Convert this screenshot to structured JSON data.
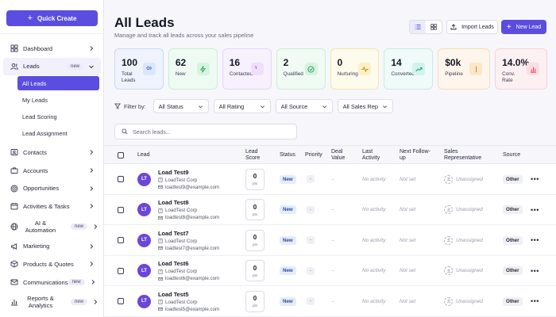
{
  "sidebar": {
    "quick_create": "Quick Create",
    "items": [
      {
        "id": "dashboard",
        "label": "Dashboard",
        "icon": "grid-icon",
        "chevron": true
      },
      {
        "id": "leads",
        "label": "Leads",
        "icon": "users-icon",
        "badge": "new",
        "expanded": true,
        "children": [
          {
            "label": "All Leads",
            "active": true
          },
          {
            "label": "My Leads"
          },
          {
            "label": "Lead Scoring"
          },
          {
            "label": "Lead Assignment"
          }
        ]
      },
      {
        "id": "contacts",
        "label": "Contacts",
        "icon": "contact-card-icon",
        "chevron": true
      },
      {
        "id": "accounts",
        "label": "Accounts",
        "icon": "briefcase-icon",
        "chevron": true
      },
      {
        "id": "opportunities",
        "label": "Opportunities",
        "icon": "target-icon",
        "chevron": true
      },
      {
        "id": "activities",
        "label": "Activities & Tasks",
        "icon": "calendar-icon",
        "chevron": true
      },
      {
        "id": "ai",
        "label": "AI & Automation",
        "icon": "globe-icon",
        "badge": "new",
        "chevron": true
      },
      {
        "id": "marketing",
        "label": "Marketing",
        "icon": "megaphone-icon",
        "chevron": true
      },
      {
        "id": "products",
        "label": "Products & Quotes",
        "icon": "box-icon",
        "chevron": true
      },
      {
        "id": "communications",
        "label": "Communications",
        "icon": "mail-icon",
        "badge": "new",
        "chevron": true
      },
      {
        "id": "reports",
        "label": "Reports & Analytics",
        "icon": "bar-chart-icon",
        "badge": "new",
        "chevron": true
      }
    ]
  },
  "header": {
    "title": "All Leads",
    "subtitle": "Manage and track all leads across your sales pipeline",
    "import_label": "Import Leads",
    "new_label": "New Lead"
  },
  "stats": [
    {
      "value": "100",
      "label": "Total Leads",
      "bg": "#eef3fe",
      "border": "#c9d8f8",
      "icon_bg": "#dbe6fc",
      "icon_color": "#3d5ed6",
      "icon": "users-icon"
    },
    {
      "value": "62",
      "label": "New",
      "bg": "#eefbf3",
      "border": "#c9eed7",
      "icon_bg": "#d4f4e0",
      "icon_color": "#1f9d55",
      "icon": "bolt-icon"
    },
    {
      "value": "16",
      "label": "Contacted",
      "bg": "#f7f0fd",
      "border": "#e6d5f7",
      "icon_bg": "#efdffb",
      "icon_color": "#8a3fd1",
      "icon": "phone-icon"
    },
    {
      "value": "2",
      "label": "Qualified",
      "bg": "#f0fbf3",
      "border": "#ccecd5",
      "icon_bg": "#d6f3df",
      "icon_color": "#1f9d55",
      "icon": "check-circle-icon"
    },
    {
      "value": "0",
      "label": "Nurturing",
      "bg": "#fdfbeb",
      "border": "#f1e6b3",
      "icon_bg": "#fbf1c5",
      "icon_color": "#b88a00",
      "icon": "pulse-icon"
    },
    {
      "value": "14",
      "label": "Converted",
      "bg": "#eefbf8",
      "border": "#c7ece2",
      "icon_bg": "#d2f3ea",
      "icon_color": "#15977a",
      "icon": "trend-up-icon"
    },
    {
      "value": "$0k",
      "label": "Pipeline",
      "bg": "#fef6ec",
      "border": "#f5dcbc",
      "icon_bg": "#fde6c8",
      "icon_color": "#d27a12",
      "icon": "dollar-icon"
    },
    {
      "value": "14.0%",
      "label": "Conv. Rate",
      "bg": "#fdf0f2",
      "border": "#f6d3da",
      "icon_bg": "#fbdde3",
      "icon_color": "#d63e5d",
      "icon": "bar-chart-icon"
    }
  ],
  "filters": {
    "label": "Filter by:",
    "selects": [
      "All Status",
      "All Rating",
      "All Source",
      "All Sales Rep"
    ]
  },
  "search": {
    "placeholder": "Search leads..."
  },
  "table": {
    "columns": [
      "Lead",
      "Lead Score",
      "Status",
      "Priority",
      "Deal Value",
      "Last Activity",
      "Next Follow-up",
      "Sales Representative",
      "Source"
    ],
    "rows": [
      {
        "initials": "LT",
        "name": "Load Test9",
        "company": "LoadTest Corp",
        "email": "loadtest9@example.com",
        "score": "0",
        "pts": "pts",
        "status": "New",
        "priority": "-",
        "deal": "-",
        "last_activity": "No activity",
        "follow_up": "Not set",
        "rep": "Unassigned",
        "source": "Other",
        "more": "•••"
      },
      {
        "initials": "LT",
        "name": "Load Test8",
        "company": "LoadTest Corp",
        "email": "loadtest8@example.com",
        "score": "0",
        "pts": "pts",
        "status": "New",
        "priority": "-",
        "deal": "-",
        "last_activity": "No activity",
        "follow_up": "Not set",
        "rep": "Unassigned",
        "source": "Other",
        "more": "•••"
      },
      {
        "initials": "LT",
        "name": "Load Test7",
        "company": "LoadTest Corp",
        "email": "loadtest7@example.com",
        "score": "0",
        "pts": "pts",
        "status": "New",
        "priority": "-",
        "deal": "-",
        "last_activity": "No activity",
        "follow_up": "Not set",
        "rep": "Unassigned",
        "source": "Other",
        "more": "•••"
      },
      {
        "initials": "LT",
        "name": "Load Test6",
        "company": "LoadTest Corp",
        "email": "loadtest6@example.com",
        "score": "0",
        "pts": "pts",
        "status": "New",
        "priority": "-",
        "deal": "-",
        "last_activity": "No activity",
        "follow_up": "Not set",
        "rep": "Unassigned",
        "source": "Other",
        "more": "•••"
      },
      {
        "initials": "LT",
        "name": "Load Test5",
        "company": "LoadTest Corp",
        "email": "loadtest5@example.com",
        "score": "0",
        "pts": "pts",
        "status": "New",
        "priority": "-",
        "deal": "-",
        "last_activity": "No activity",
        "follow_up": "Not set",
        "rep": "Unassigned",
        "source": "Other",
        "more": "•••"
      }
    ]
  },
  "colors": {
    "accent": "#5b4de0",
    "avatar": "#6d46d8"
  }
}
